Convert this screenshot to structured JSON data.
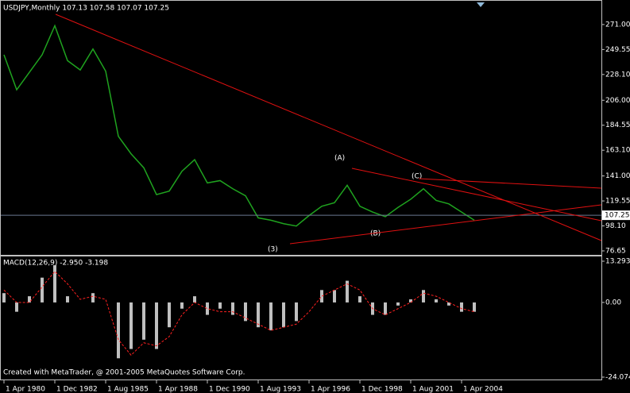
{
  "chart_data": [
    {
      "type": "line",
      "title": "USDJPY,Monthly  107.13 107.58 107.07 107.25",
      "color": "#1fa31f",
      "values": [
        245,
        215,
        230,
        245,
        270,
        240,
        232,
        250,
        231,
        175,
        160,
        148,
        125,
        128,
        145,
        155,
        135,
        137,
        130,
        124,
        105,
        103,
        100,
        98,
        107,
        115,
        118,
        133,
        115,
        110,
        106,
        114,
        121,
        130,
        120,
        117,
        110,
        103
      ],
      "ylim": [
        73.25,
        290.7
      ],
      "yticks": [
        {
          "value": 271,
          "label": "271.00"
        },
        {
          "value": 249.55,
          "label": "249.55"
        },
        {
          "value": 228.1,
          "label": "228.10"
        },
        {
          "value": 206,
          "label": "206.00"
        },
        {
          "value": 184.55,
          "label": "184.55"
        },
        {
          "value": 163.1,
          "label": "163.10"
        },
        {
          "value": 141,
          "label": "141.00"
        },
        {
          "value": 119.55,
          "label": "119.55"
        },
        {
          "value": 98.1,
          "label": "98.10"
        },
        {
          "value": 76.65,
          "label": "76.65"
        }
      ],
      "current_price": 107.25,
      "annotations": [
        "(A)",
        "(B)",
        "(C)",
        "(3)"
      ]
    },
    {
      "type": "bar",
      "title": "MACD(12,26,9) -2.950 -3.198",
      "color": "#c0c0c0",
      "signal_color": "#ff2020",
      "categories": [
        "1 Apr 1980",
        null,
        null,
        null,
        "1 Dec 1982",
        null,
        null,
        null,
        "1 Aug 1985",
        null,
        null,
        null,
        "1 Apr 1988",
        null,
        null,
        null,
        "1 Dec 1990",
        null,
        null,
        null,
        "1 Aug 1993",
        null,
        null,
        null,
        "1 Apr 1996",
        null,
        null,
        null,
        "1 Dec 1998",
        null,
        null,
        null,
        "1 Aug 2001",
        null,
        null,
        null,
        "1 Apr 2004",
        null
      ],
      "values": [
        3,
        -3,
        2,
        8,
        12,
        2,
        0,
        3,
        0,
        -18,
        -15,
        -12,
        -15,
        -8,
        -2,
        2,
        -4,
        -2,
        -4,
        -6,
        -8,
        -9,
        -8,
        -6,
        0,
        4,
        4,
        7,
        2,
        -4,
        -4,
        -1,
        1,
        4,
        1,
        -1,
        -3,
        -3
      ],
      "signal_values": [
        4,
        0,
        0,
        5,
        10,
        6,
        1,
        2,
        1,
        -12,
        -17,
        -13,
        -14,
        -11,
        -4,
        0,
        -2,
        -3,
        -3,
        -5,
        -7,
        -9,
        -8,
        -7,
        -3,
        2,
        4,
        6,
        4,
        -2,
        -4,
        -2,
        0,
        3,
        2,
        0,
        -2,
        -3
      ],
      "ylim": [
        -24.84,
        14.83
      ],
      "yticks": [
        13.293,
        {
          "value": 0,
          "label": "0.00"
        },
        -24.074
      ],
      "footer": "Created with MetaTrader, @ 2001-2005 MetaQuotes Software Corp."
    }
  ]
}
